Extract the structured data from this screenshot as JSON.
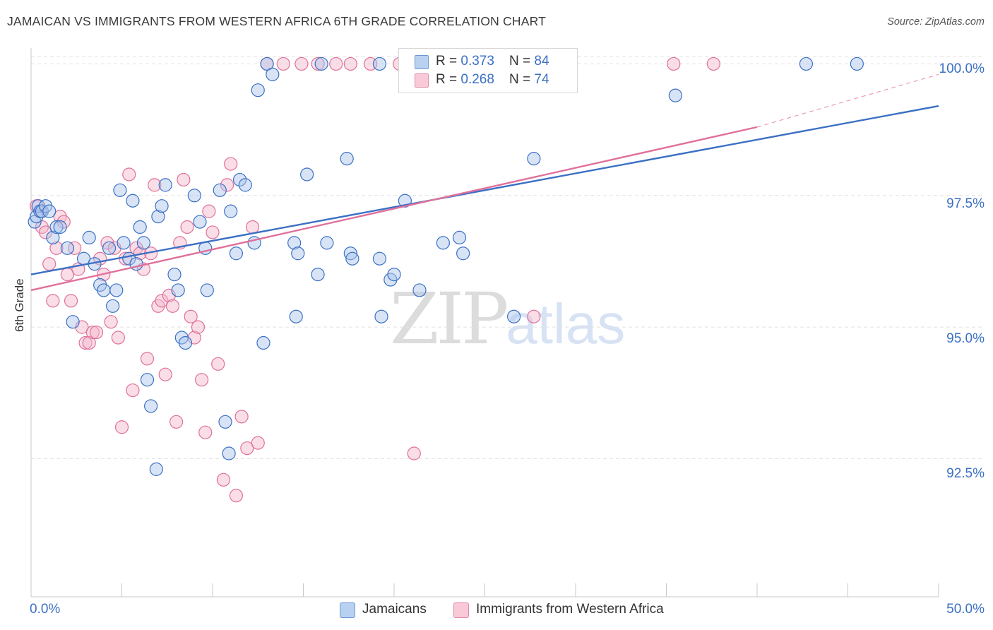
{
  "header": {
    "title": "JAMAICAN VS IMMIGRANTS FROM WESTERN AFRICA 6TH GRADE CORRELATION CHART",
    "source": "Source: ZipAtlas.com"
  },
  "stats": [
    {
      "r_label": "R = ",
      "r_value": "0.373",
      "n_label": "N = ",
      "n_value": "84"
    },
    {
      "r_label": "R = ",
      "r_value": "0.268",
      "n_label": "N = ",
      "n_value": "74"
    }
  ],
  "legend": [
    {
      "label": "Jamaicans"
    },
    {
      "label": "Immigrants from Western Africa"
    }
  ],
  "axes": {
    "x_min_label": "0.0%",
    "x_max_label": "50.0%",
    "y_title": "6th Grade",
    "y_ticks": [
      "100.0%",
      "97.5%",
      "95.0%",
      "92.5%"
    ]
  },
  "watermark": {
    "zip": "ZIP",
    "atlas": "atlas"
  },
  "colors": {
    "blue": "#3b70c4",
    "blue_fill": "#a8c4ec",
    "pink": "#e0709b",
    "pink_fill": "#f4b6ca",
    "grid": "#e2e2e2"
  },
  "chart_data": {
    "type": "scatter",
    "xlabel": "",
    "ylabel": "6th Grade",
    "xlim": [
      0,
      50
    ],
    "ylim": [
      90.2,
      100.45
    ],
    "y_gridlines": [
      92.5,
      95.0,
      97.5,
      100.0
    ],
    "series": [
      {
        "name": "Jamaicans",
        "trend": {
          "x": [
            0,
            50
          ],
          "y": [
            96.0,
            99.2
          ]
        },
        "points": [
          [
            0.2,
            97.0
          ],
          [
            0.3,
            97.1
          ],
          [
            0.4,
            97.3
          ],
          [
            0.5,
            97.2
          ],
          [
            0.6,
            97.2
          ],
          [
            0.8,
            97.3
          ],
          [
            1.0,
            97.2
          ],
          [
            1.2,
            96.7
          ],
          [
            1.4,
            96.9
          ],
          [
            1.6,
            96.9
          ],
          [
            2.0,
            96.5
          ],
          [
            2.3,
            95.1
          ],
          [
            2.9,
            96.3
          ],
          [
            3.2,
            96.7
          ],
          [
            3.5,
            96.2
          ],
          [
            3.8,
            95.8
          ],
          [
            4.0,
            95.7
          ],
          [
            4.3,
            96.5
          ],
          [
            4.5,
            95.4
          ],
          [
            4.7,
            95.7
          ],
          [
            4.9,
            97.6
          ],
          [
            5.1,
            96.6
          ],
          [
            5.4,
            96.3
          ],
          [
            5.6,
            97.4
          ],
          [
            5.8,
            96.2
          ],
          [
            6.0,
            96.9
          ],
          [
            6.2,
            96.6
          ],
          [
            6.4,
            94.0
          ],
          [
            6.6,
            93.5
          ],
          [
            6.9,
            92.3
          ],
          [
            7.0,
            97.1
          ],
          [
            7.2,
            97.3
          ],
          [
            7.4,
            97.7
          ],
          [
            7.9,
            96.0
          ],
          [
            8.1,
            95.7
          ],
          [
            8.3,
            94.8
          ],
          [
            8.5,
            94.7
          ],
          [
            9.0,
            97.5
          ],
          [
            9.3,
            97.0
          ],
          [
            9.6,
            96.5
          ],
          [
            9.7,
            95.7
          ],
          [
            10.4,
            97.6
          ],
          [
            10.7,
            93.2
          ],
          [
            10.9,
            92.6
          ],
          [
            11.0,
            97.2
          ],
          [
            11.3,
            96.4
          ],
          [
            11.5,
            97.8
          ],
          [
            11.8,
            97.7
          ],
          [
            12.3,
            96.6
          ],
          [
            12.5,
            99.5
          ],
          [
            12.8,
            94.7
          ],
          [
            13.0,
            100.0
          ],
          [
            13.3,
            99.8
          ],
          [
            14.5,
            96.6
          ],
          [
            14.7,
            96.4
          ],
          [
            14.6,
            95.2
          ],
          [
            15.2,
            97.9
          ],
          [
            15.8,
            96.0
          ],
          [
            16.0,
            100.0
          ],
          [
            16.3,
            96.6
          ],
          [
            17.4,
            98.2
          ],
          [
            17.6,
            96.4
          ],
          [
            17.7,
            96.3
          ],
          [
            19.2,
            96.3
          ],
          [
            19.2,
            100.0
          ],
          [
            19.3,
            95.2
          ],
          [
            19.8,
            95.9
          ],
          [
            20.0,
            96.0
          ],
          [
            20.6,
            97.4
          ],
          [
            21.4,
            95.7
          ],
          [
            22.7,
            96.6
          ],
          [
            23.6,
            96.7
          ],
          [
            23.8,
            96.4
          ],
          [
            26.6,
            95.2
          ],
          [
            27.7,
            98.2
          ],
          [
            35.5,
            99.4
          ],
          [
            42.7,
            100.0
          ],
          [
            45.5,
            100.0
          ]
        ]
      },
      {
        "name": "Immigrants from Western Africa",
        "trend": {
          "x": [
            0,
            40
          ],
          "y": [
            95.7,
            98.8
          ]
        },
        "trend_dashed": {
          "x": [
            40,
            50
          ],
          "y": [
            98.8,
            99.8
          ]
        },
        "points": [
          [
            0.3,
            97.3
          ],
          [
            0.5,
            97.2
          ],
          [
            0.6,
            96.9
          ],
          [
            0.8,
            96.8
          ],
          [
            1.0,
            96.2
          ],
          [
            1.2,
            95.5
          ],
          [
            1.4,
            96.5
          ],
          [
            1.6,
            97.1
          ],
          [
            1.8,
            97.0
          ],
          [
            2.0,
            96.0
          ],
          [
            2.2,
            95.5
          ],
          [
            2.4,
            96.5
          ],
          [
            2.6,
            96.1
          ],
          [
            2.8,
            95.0
          ],
          [
            3.0,
            94.7
          ],
          [
            3.2,
            94.7
          ],
          [
            3.4,
            94.9
          ],
          [
            3.6,
            94.9
          ],
          [
            3.8,
            96.3
          ],
          [
            4.0,
            96.0
          ],
          [
            4.2,
            96.6
          ],
          [
            4.4,
            95.1
          ],
          [
            4.6,
            96.5
          ],
          [
            4.8,
            94.8
          ],
          [
            5.0,
            93.1
          ],
          [
            5.2,
            96.3
          ],
          [
            5.4,
            97.9
          ],
          [
            5.6,
            93.8
          ],
          [
            5.8,
            96.5
          ],
          [
            6.0,
            96.4
          ],
          [
            6.2,
            96.1
          ],
          [
            6.4,
            94.4
          ],
          [
            6.6,
            96.4
          ],
          [
            6.8,
            97.7
          ],
          [
            7.0,
            95.4
          ],
          [
            7.2,
            95.5
          ],
          [
            7.4,
            94.1
          ],
          [
            7.6,
            95.6
          ],
          [
            7.8,
            95.4
          ],
          [
            8.0,
            93.2
          ],
          [
            8.2,
            96.6
          ],
          [
            8.4,
            97.8
          ],
          [
            8.6,
            96.9
          ],
          [
            8.8,
            95.2
          ],
          [
            9.0,
            94.8
          ],
          [
            9.2,
            95.0
          ],
          [
            9.4,
            94.0
          ],
          [
            9.6,
            93.0
          ],
          [
            9.8,
            97.2
          ],
          [
            10.0,
            96.8
          ],
          [
            10.3,
            94.3
          ],
          [
            10.6,
            92.1
          ],
          [
            10.8,
            97.7
          ],
          [
            11.0,
            98.1
          ],
          [
            11.3,
            91.8
          ],
          [
            11.6,
            93.3
          ],
          [
            11.9,
            92.7
          ],
          [
            12.2,
            96.9
          ],
          [
            12.5,
            92.8
          ],
          [
            13.0,
            100.0
          ],
          [
            13.9,
            100.0
          ],
          [
            14.9,
            100.0
          ],
          [
            15.8,
            100.0
          ],
          [
            16.8,
            100.0
          ],
          [
            17.6,
            100.0
          ],
          [
            18.7,
            100.0
          ],
          [
            20.3,
            100.0
          ],
          [
            21.1,
            92.6
          ],
          [
            22.0,
            100.0
          ],
          [
            27.7,
            95.2
          ],
          [
            35.4,
            100.0
          ],
          [
            37.6,
            100.0
          ]
        ]
      }
    ]
  }
}
